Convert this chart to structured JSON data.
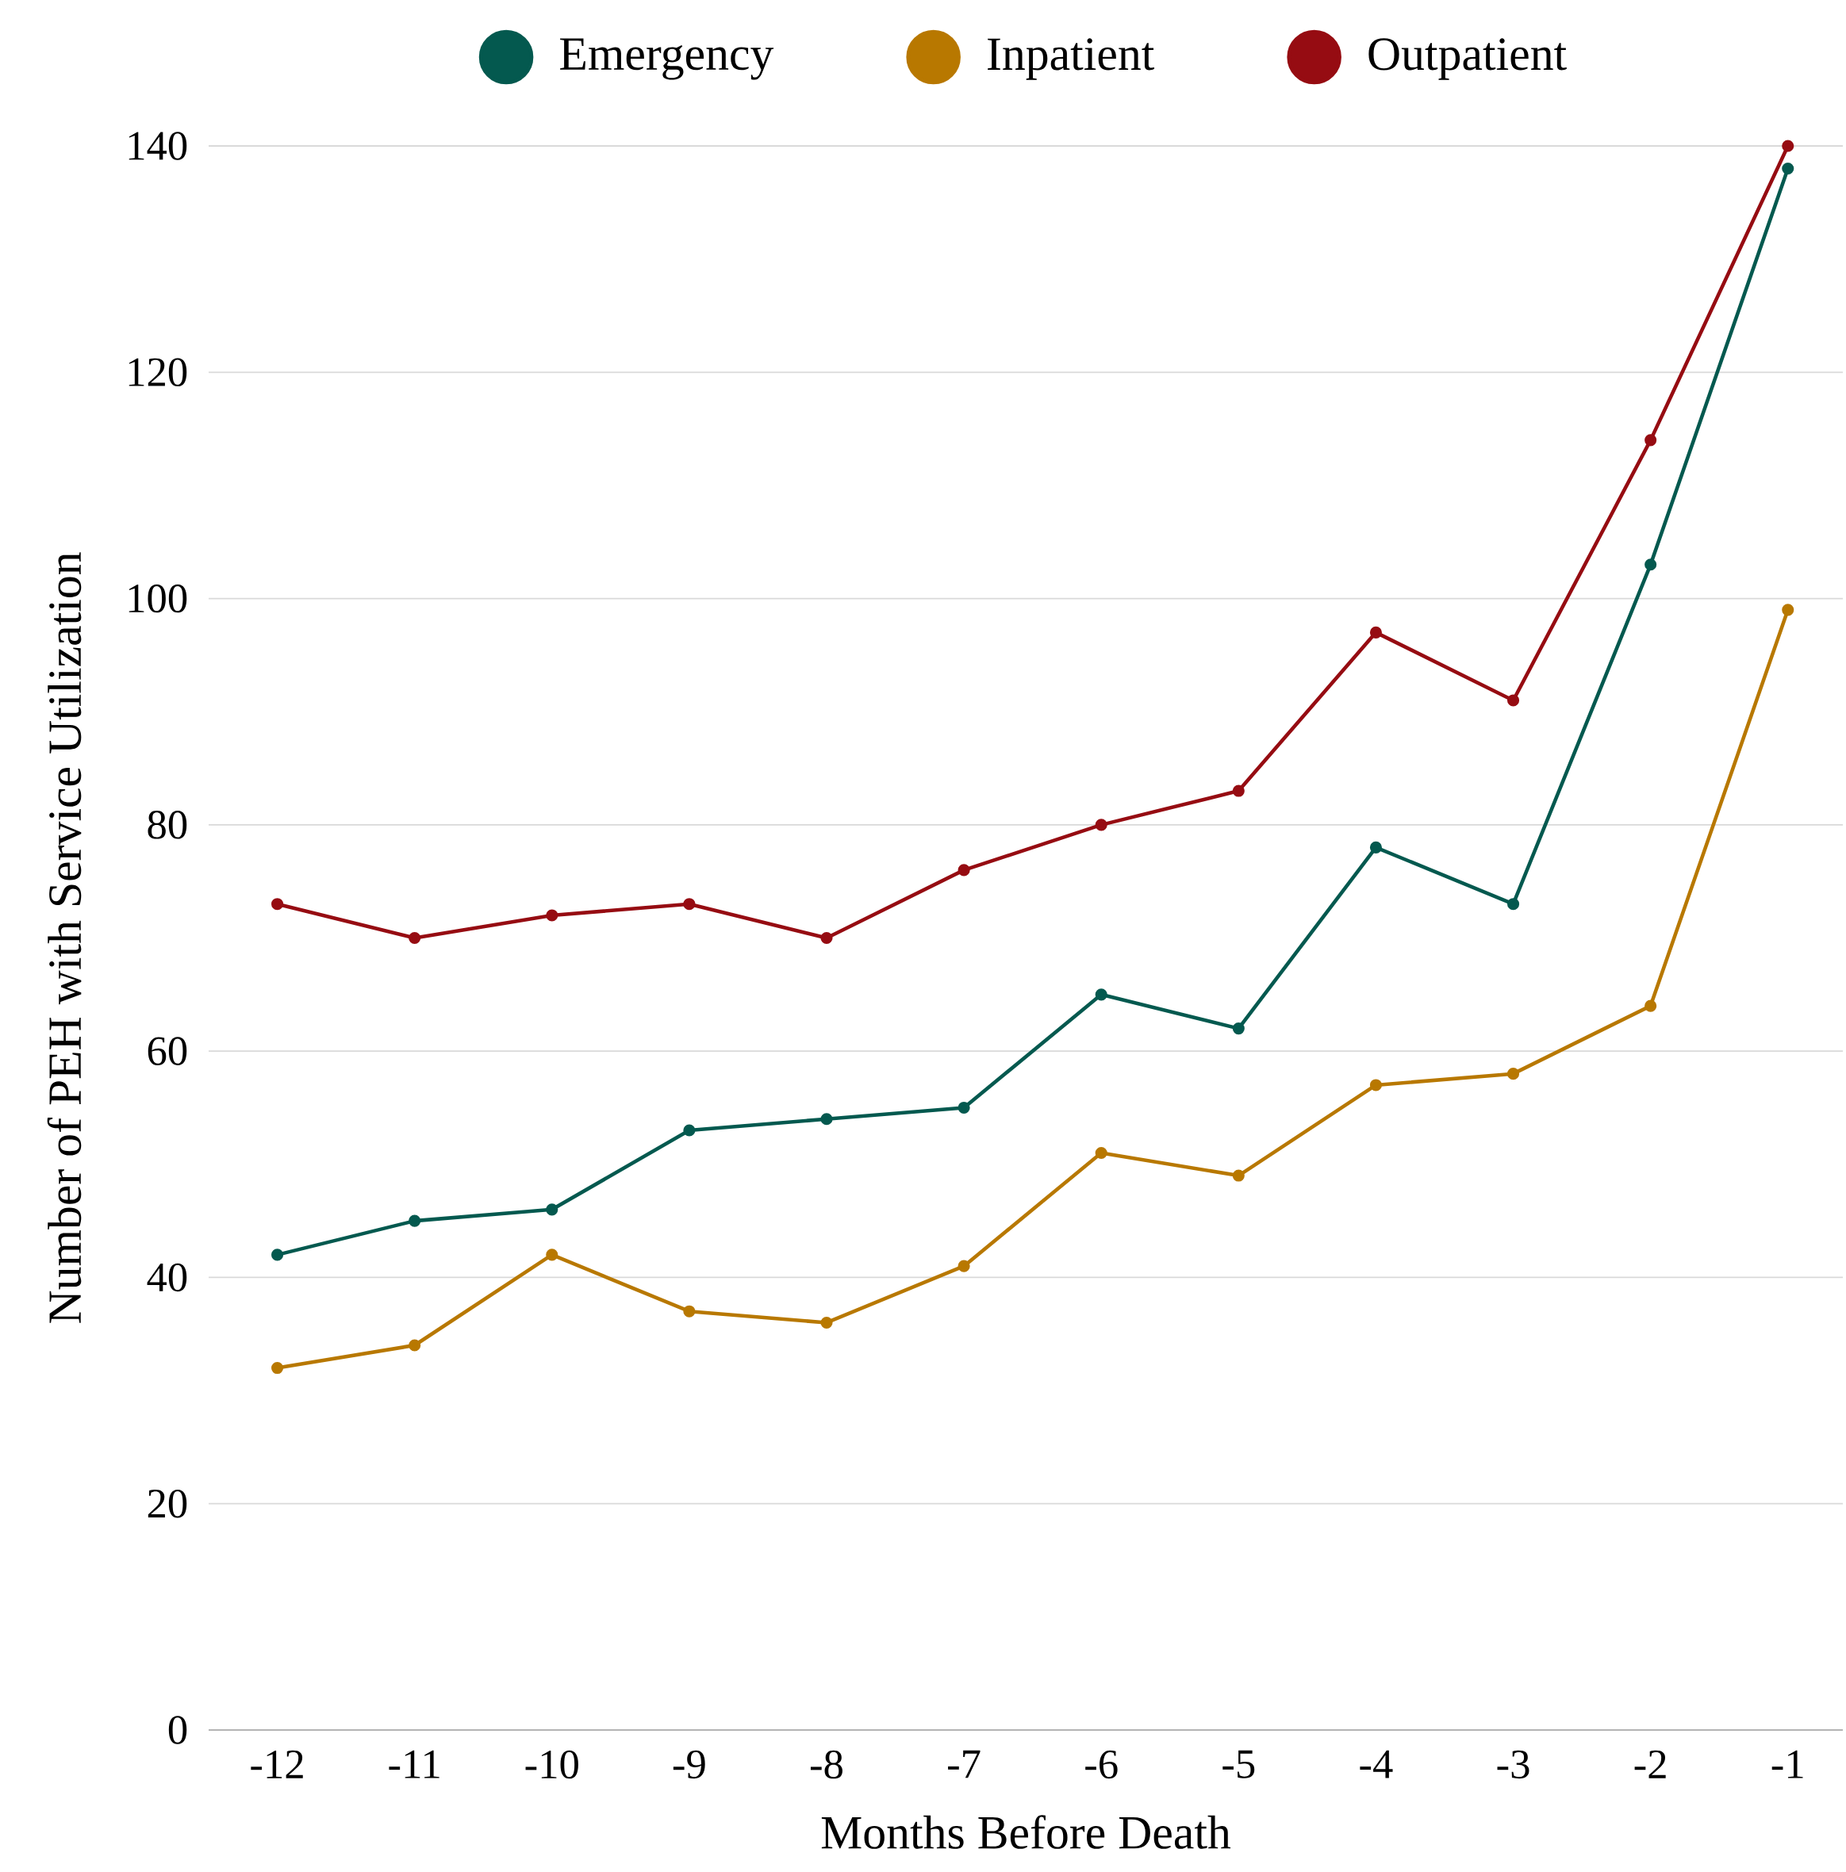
{
  "chart_data": {
    "type": "line",
    "xlabel": "Months Before Death",
    "ylabel": "Number of PEH with Service Utilization",
    "categories": [
      "-12",
      "-11",
      "-10",
      "-9",
      "-8",
      "-7",
      "-6",
      "-5",
      "-4",
      "-3",
      "-2",
      "-1"
    ],
    "series": [
      {
        "name": "Emergency",
        "color": "#04594f",
        "values": [
          42,
          45,
          46,
          53,
          54,
          55,
          65,
          62,
          78,
          73,
          103,
          138
        ]
      },
      {
        "name": "Inpatient",
        "color": "#b87800",
        "values": [
          32,
          34,
          42,
          37,
          36,
          41,
          51,
          49,
          57,
          58,
          64,
          99
        ]
      },
      {
        "name": "Outpatient",
        "color": "#960c12",
        "values": [
          73,
          70,
          72,
          73,
          70,
          76,
          80,
          83,
          97,
          91,
          114,
          140
        ]
      }
    ],
    "ylim": [
      0,
      140
    ],
    "yticks": [
      0,
      20,
      40,
      60,
      80,
      100,
      120,
      140
    ],
    "grid": "y",
    "legend": "top",
    "marker": "circle",
    "line_style": "solid"
  }
}
